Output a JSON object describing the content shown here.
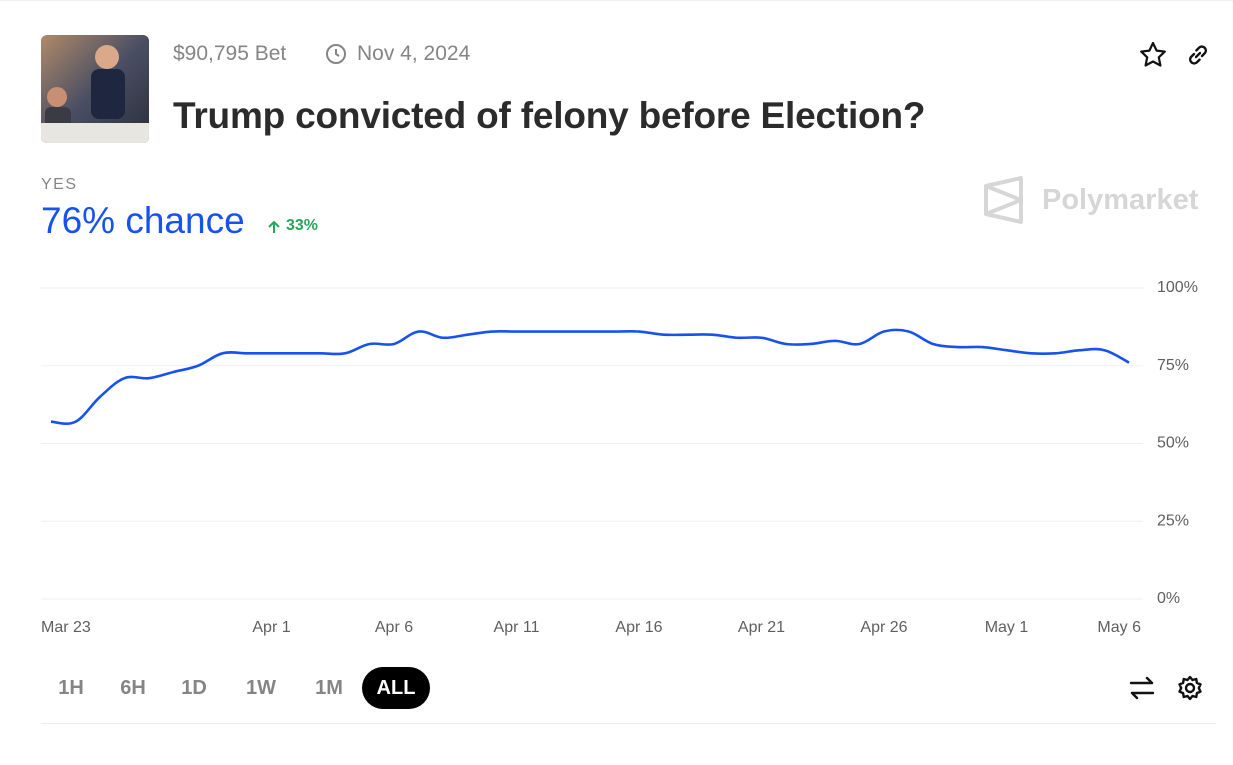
{
  "header": {
    "bet": "$90,795 Bet",
    "end_date": "Nov 4, 2024",
    "title": "Trump convicted of felony before Election?"
  },
  "outcome": {
    "label": "YES",
    "chance": "76% chance",
    "change": "33%"
  },
  "brand": "Polymarket",
  "range_buttons": [
    "1H",
    "6H",
    "1D",
    "1W",
    "1M",
    "ALL"
  ],
  "active_range": "ALL",
  "chart_data": {
    "type": "line",
    "color": "#1652f0",
    "x": [
      "Mar 23",
      "Mar 24",
      "Mar 25",
      "Mar 26",
      "Mar 27",
      "Mar 28",
      "Mar 29",
      "Mar 30",
      "Mar 31",
      "Apr 1",
      "Apr 2",
      "Apr 3",
      "Apr 4",
      "Apr 5",
      "Apr 6",
      "Apr 7",
      "Apr 8",
      "Apr 9",
      "Apr 10",
      "Apr 11",
      "Apr 12",
      "Apr 13",
      "Apr 14",
      "Apr 15",
      "Apr 16",
      "Apr 17",
      "Apr 18",
      "Apr 19",
      "Apr 20",
      "Apr 21",
      "Apr 22",
      "Apr 23",
      "Apr 24",
      "Apr 25",
      "Apr 26",
      "Apr 27",
      "Apr 28",
      "Apr 29",
      "Apr 30",
      "May 1",
      "May 2",
      "May 3",
      "May 4",
      "May 5",
      "May 6"
    ],
    "values": [
      57,
      57,
      65,
      71,
      71,
      73,
      75,
      79,
      79,
      79,
      79,
      79,
      79,
      82,
      82,
      86,
      84,
      85,
      86,
      86,
      86,
      86,
      86,
      86,
      86,
      85,
      85,
      85,
      84,
      84,
      82,
      82,
      83,
      82,
      86,
      86,
      82,
      81,
      81,
      80,
      79,
      79,
      80,
      80,
      76
    ],
    "xticks": [
      "Mar 23",
      "Apr 1",
      "Apr 6",
      "Apr 11",
      "Apr 16",
      "Apr 21",
      "Apr 26",
      "May 1",
      "May 6"
    ],
    "ylim": [
      0,
      100
    ],
    "yticks": [
      {
        "value": 0,
        "label": "0%"
      },
      {
        "value": 25,
        "label": "25%"
      },
      {
        "value": 50,
        "label": "50%"
      },
      {
        "value": 75,
        "label": "75%"
      },
      {
        "value": 100,
        "label": "100%"
      }
    ],
    "grid": true
  }
}
